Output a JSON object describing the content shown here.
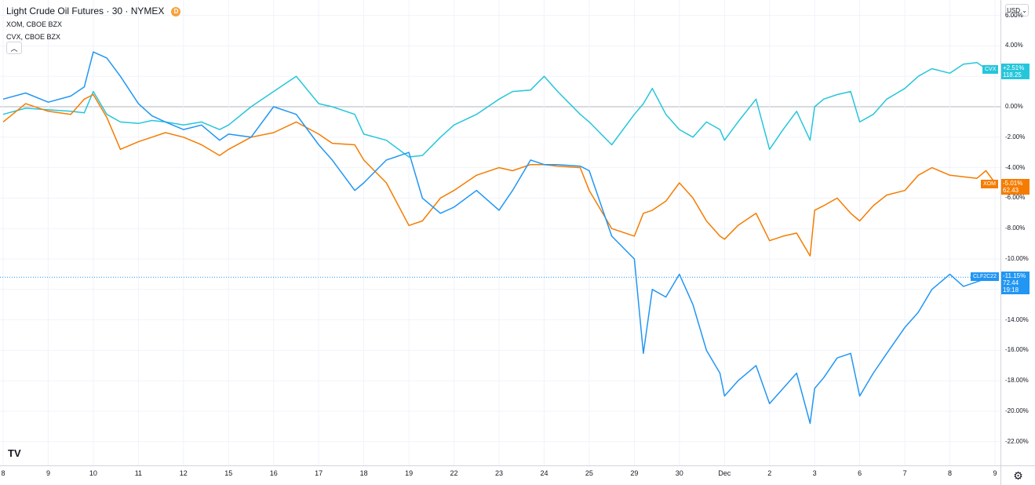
{
  "legend": {
    "main_title": "Light Crude Oil Futures · 30 · NYMEX",
    "badge": "D",
    "series": [
      "XOM, CBOE BZX",
      "CVX, CBOE BZX"
    ],
    "collapse_icon": "chevron-up-icon"
  },
  "currency_button": "USD ⌄",
  "tv_logo": "TV",
  "settings_icon": "⚙",
  "tags": {
    "cvx": {
      "name": "CVX",
      "pct": "+2.51%",
      "price": "118.25",
      "color": "#26c6da"
    },
    "xom": {
      "name": "XOM",
      "pct": "-5.01%",
      "price": "62.43",
      "color": "#f57c00"
    },
    "clf": {
      "name": "CLF2C22",
      "pct": "-11.15%",
      "price": "72.44",
      "time": "19:18",
      "color": "#2196f3"
    }
  },
  "chart_data": {
    "type": "line",
    "title": "Light Crude Oil Futures · 30 · NYMEX",
    "y_unit": "percent",
    "ylim": [
      -23,
      7
    ],
    "y_ticks": [
      "6.00%",
      "4.00%",
      "2.00%",
      "0.00%",
      "-2.00%",
      "-4.00%",
      "-6.00%",
      "-8.00%",
      "-10.00%",
      "-12.00%",
      "-14.00%",
      "-16.00%",
      "-18.00%",
      "-20.00%",
      "-22.00%"
    ],
    "x_ticks": [
      "8",
      "9",
      "10",
      "11",
      "12",
      "15",
      "16",
      "17",
      "18",
      "19",
      "22",
      "23",
      "24",
      "25",
      "29",
      "30",
      "Dec",
      "2",
      "3",
      "6",
      "7",
      "8",
      "9"
    ],
    "grid": true,
    "series": [
      {
        "name": "CLF2C22",
        "color": "#2196f3",
        "x": [
          0,
          0.5,
          1,
          1.5,
          1.8,
          2,
          2.3,
          2.6,
          3,
          3.3,
          3.6,
          4,
          4.4,
          4.8,
          5,
          5.5,
          6,
          6.5,
          7,
          7.3,
          7.8,
          8,
          8.5,
          9,
          9.3,
          9.7,
          10,
          10.5,
          11,
          11.3,
          11.7,
          12,
          12.3,
          12.8,
          13,
          13.5,
          14,
          14.2,
          14.4,
          14.7,
          15,
          15.3,
          15.6,
          15.9,
          16,
          16.3,
          16.7,
          17,
          17.3,
          17.6,
          17.9,
          18,
          18.2,
          18.5,
          18.8,
          19,
          19.3,
          19.6,
          20,
          20.3,
          20.6,
          21,
          21.3,
          21.6,
          21.8,
          22
        ],
        "y": [
          0.5,
          0.9,
          0.3,
          0.7,
          1.3,
          3.6,
          3.2,
          2.0,
          0.2,
          -0.6,
          -1.0,
          -1.5,
          -1.2,
          -2.2,
          -1.8,
          -2.0,
          0.0,
          -0.5,
          -2.5,
          -3.5,
          -5.5,
          -5.0,
          -3.5,
          -3.0,
          -6.0,
          -7.0,
          -6.6,
          -5.5,
          -6.8,
          -5.5,
          -3.5,
          -3.8,
          -3.8,
          -3.9,
          -4.2,
          -8.5,
          -10.0,
          -16.2,
          -12.0,
          -12.5,
          -11.0,
          -13.0,
          -16.0,
          -17.5,
          -19.0,
          -18.0,
          -17.0,
          -19.5,
          -18.5,
          -17.5,
          -20.8,
          -18.5,
          -17.8,
          -16.5,
          -16.2,
          -19.0,
          -17.5,
          -16.2,
          -14.5,
          -13.5,
          -12.0,
          -11.0,
          -11.8,
          -11.5,
          -11.3,
          -11.2
        ]
      },
      {
        "name": "XOM",
        "color": "#f57c00",
        "x": [
          0,
          0.5,
          1,
          1.5,
          1.8,
          2,
          2.3,
          2.6,
          3,
          3.3,
          3.6,
          4,
          4.4,
          4.8,
          5,
          5.5,
          6,
          6.5,
          7,
          7.3,
          7.8,
          8,
          8.5,
          9,
          9.3,
          9.7,
          10,
          10.5,
          11,
          11.3,
          11.7,
          12,
          12.3,
          12.8,
          13,
          13.5,
          14,
          14.2,
          14.4,
          14.7,
          15,
          15.3,
          15.6,
          15.9,
          16,
          16.3,
          16.7,
          17,
          17.3,
          17.6,
          17.9,
          18,
          18.2,
          18.5,
          18.8,
          19,
          19.3,
          19.6,
          20,
          20.3,
          20.6,
          21,
          21.3,
          21.6,
          21.8,
          22
        ],
        "y": [
          -1.0,
          0.2,
          -0.3,
          -0.5,
          0.5,
          0.8,
          -0.7,
          -2.8,
          -2.3,
          -2.0,
          -1.7,
          -2.0,
          -2.5,
          -3.2,
          -2.8,
          -2.0,
          -1.7,
          -1.0,
          -1.8,
          -2.4,
          -2.5,
          -3.5,
          -5.0,
          -7.8,
          -7.5,
          -6.0,
          -5.5,
          -4.5,
          -4.0,
          -4.2,
          -3.8,
          -3.8,
          -3.9,
          -4.0,
          -5.5,
          -8.0,
          -8.5,
          -7.0,
          -6.8,
          -6.2,
          -5.0,
          -6.0,
          -7.5,
          -8.5,
          -8.7,
          -7.8,
          -7.0,
          -8.8,
          -8.5,
          -8.3,
          -9.8,
          -6.8,
          -6.5,
          -6.0,
          -7.0,
          -7.5,
          -6.5,
          -5.8,
          -5.5,
          -4.5,
          -4.0,
          -4.5,
          -4.6,
          -4.7,
          -4.2,
          -5.0
        ]
      },
      {
        "name": "CVX",
        "color": "#26c6da",
        "x": [
          0,
          0.5,
          1,
          1.5,
          1.8,
          2,
          2.3,
          2.6,
          3,
          3.3,
          3.6,
          4,
          4.4,
          4.8,
          5,
          5.5,
          6,
          6.5,
          7,
          7.3,
          7.8,
          8,
          8.5,
          9,
          9.3,
          9.7,
          10,
          10.5,
          11,
          11.3,
          11.7,
          12,
          12.3,
          12.8,
          13,
          13.5,
          14,
          14.2,
          14.4,
          14.7,
          15,
          15.3,
          15.6,
          15.9,
          16,
          16.3,
          16.7,
          17,
          17.3,
          17.6,
          17.9,
          18,
          18.2,
          18.5,
          18.8,
          19,
          19.3,
          19.6,
          20,
          20.3,
          20.6,
          21,
          21.3,
          21.6,
          21.8,
          22
        ],
        "y": [
          -0.5,
          -0.1,
          -0.2,
          -0.3,
          -0.4,
          1.0,
          -0.5,
          -1.0,
          -1.1,
          -0.9,
          -1.0,
          -1.2,
          -1.0,
          -1.5,
          -1.2,
          0.0,
          1.0,
          2.0,
          0.2,
          0.0,
          -0.5,
          -1.8,
          -2.2,
          -3.3,
          -3.2,
          -2.0,
          -1.2,
          -0.5,
          0.5,
          1.0,
          1.1,
          2.0,
          1.0,
          -0.5,
          -1.0,
          -2.5,
          -0.5,
          0.2,
          1.2,
          -0.5,
          -1.5,
          -2.0,
          -1.0,
          -1.5,
          -2.2,
          -1.0,
          0.5,
          -2.8,
          -1.5,
          -0.3,
          -2.2,
          0.0,
          0.5,
          0.8,
          1.0,
          -1.0,
          -0.5,
          0.5,
          1.2,
          2.0,
          2.5,
          2.2,
          2.8,
          2.9,
          2.5,
          2.5
        ]
      }
    ]
  }
}
